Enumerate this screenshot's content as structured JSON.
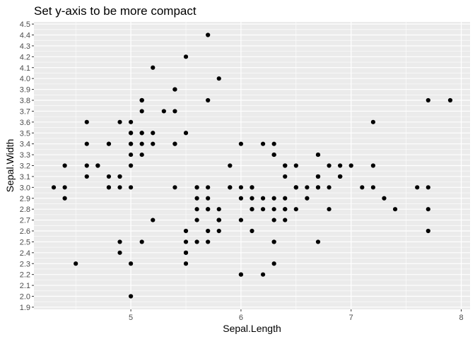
{
  "chart_data": {
    "type": "scatter",
    "title": "Set y-axis to be more compact",
    "xlabel": "Sepal.Length",
    "ylabel": "Sepal.Width",
    "xlim": [
      4.12,
      8.08
    ],
    "ylim": [
      1.88,
      4.52
    ],
    "x_ticks": [
      5,
      6,
      7,
      8
    ],
    "y_ticks": [
      1.9,
      2.0,
      2.1,
      2.2,
      2.3,
      2.4,
      2.5,
      2.6,
      2.7,
      2.8,
      2.9,
      3.0,
      3.1,
      3.2,
      3.3,
      3.4,
      3.5,
      3.6,
      3.7,
      3.8,
      3.9,
      4.0,
      4.1,
      4.2,
      4.3,
      4.4,
      4.5
    ],
    "grid": true,
    "panel_color": "#ebebeb",
    "grid_color": "#ffffff",
    "point_color": "#000000",
    "points": [
      [
        5.1,
        3.5
      ],
      [
        4.9,
        3.0
      ],
      [
        4.7,
        3.2
      ],
      [
        4.6,
        3.1
      ],
      [
        5.0,
        3.6
      ],
      [
        5.4,
        3.9
      ],
      [
        4.6,
        3.4
      ],
      [
        5.0,
        3.4
      ],
      [
        4.4,
        2.9
      ],
      [
        4.9,
        3.1
      ],
      [
        5.4,
        3.7
      ],
      [
        4.8,
        3.4
      ],
      [
        4.8,
        3.0
      ],
      [
        4.3,
        3.0
      ],
      [
        5.8,
        4.0
      ],
      [
        5.7,
        4.4
      ],
      [
        5.4,
        3.9
      ],
      [
        5.1,
        3.5
      ],
      [
        5.7,
        3.8
      ],
      [
        5.1,
        3.8
      ],
      [
        5.4,
        3.4
      ],
      [
        5.1,
        3.7
      ],
      [
        4.6,
        3.6
      ],
      [
        5.1,
        3.3
      ],
      [
        4.8,
        3.4
      ],
      [
        5.0,
        3.0
      ],
      [
        5.0,
        3.4
      ],
      [
        5.2,
        3.5
      ],
      [
        5.2,
        3.4
      ],
      [
        4.7,
        3.2
      ],
      [
        4.8,
        3.1
      ],
      [
        5.4,
        3.4
      ],
      [
        5.2,
        4.1
      ],
      [
        5.5,
        4.2
      ],
      [
        4.9,
        3.1
      ],
      [
        5.0,
        3.2
      ],
      [
        5.5,
        3.5
      ],
      [
        4.9,
        3.6
      ],
      [
        4.4,
        3.0
      ],
      [
        5.1,
        3.4
      ],
      [
        5.0,
        3.5
      ],
      [
        4.5,
        2.3
      ],
      [
        4.4,
        3.2
      ],
      [
        5.0,
        3.5
      ],
      [
        5.1,
        3.8
      ],
      [
        4.8,
        3.0
      ],
      [
        5.1,
        3.8
      ],
      [
        4.6,
        3.2
      ],
      [
        5.3,
        3.7
      ],
      [
        5.0,
        3.3
      ],
      [
        7.0,
        3.2
      ],
      [
        6.4,
        3.2
      ],
      [
        6.9,
        3.1
      ],
      [
        5.5,
        2.3
      ],
      [
        6.5,
        2.8
      ],
      [
        5.7,
        2.8
      ],
      [
        6.3,
        3.3
      ],
      [
        4.9,
        2.4
      ],
      [
        6.6,
        2.9
      ],
      [
        5.2,
        2.7
      ],
      [
        5.0,
        2.0
      ],
      [
        5.9,
        3.0
      ],
      [
        6.0,
        2.2
      ],
      [
        6.1,
        2.9
      ],
      [
        5.6,
        2.9
      ],
      [
        6.7,
        3.1
      ],
      [
        5.6,
        3.0
      ],
      [
        5.8,
        2.7
      ],
      [
        6.2,
        2.2
      ],
      [
        5.6,
        2.5
      ],
      [
        5.9,
        3.2
      ],
      [
        6.1,
        2.8
      ],
      [
        6.3,
        2.5
      ],
      [
        6.1,
        2.8
      ],
      [
        6.4,
        2.9
      ],
      [
        6.6,
        3.0
      ],
      [
        6.8,
        2.8
      ],
      [
        6.7,
        3.0
      ],
      [
        6.0,
        2.9
      ],
      [
        5.7,
        2.6
      ],
      [
        5.5,
        2.4
      ],
      [
        5.5,
        2.4
      ],
      [
        5.8,
        2.7
      ],
      [
        6.0,
        2.7
      ],
      [
        5.4,
        3.0
      ],
      [
        6.0,
        3.4
      ],
      [
        6.7,
        3.1
      ],
      [
        6.3,
        2.3
      ],
      [
        5.6,
        3.0
      ],
      [
        5.5,
        2.5
      ],
      [
        5.5,
        2.6
      ],
      [
        6.1,
        3.0
      ],
      [
        5.8,
        2.6
      ],
      [
        5.0,
        2.3
      ],
      [
        5.6,
        2.7
      ],
      [
        5.7,
        3.0
      ],
      [
        5.7,
        2.9
      ],
      [
        6.2,
        2.9
      ],
      [
        5.1,
        2.5
      ],
      [
        5.7,
        2.8
      ],
      [
        6.3,
        3.3
      ],
      [
        5.8,
        2.7
      ],
      [
        7.1,
        3.0
      ],
      [
        6.3,
        2.9
      ],
      [
        6.5,
        3.0
      ],
      [
        7.6,
        3.0
      ],
      [
        4.9,
        2.5
      ],
      [
        7.3,
        2.9
      ],
      [
        6.7,
        2.5
      ],
      [
        7.2,
        3.6
      ],
      [
        6.5,
        3.2
      ],
      [
        6.4,
        2.7
      ],
      [
        6.8,
        3.0
      ],
      [
        5.7,
        2.5
      ],
      [
        5.8,
        2.8
      ],
      [
        6.4,
        3.2
      ],
      [
        6.5,
        3.0
      ],
      [
        7.7,
        3.8
      ],
      [
        7.7,
        2.6
      ],
      [
        6.0,
        2.2
      ],
      [
        6.9,
        3.2
      ],
      [
        5.6,
        2.8
      ],
      [
        7.7,
        2.8
      ],
      [
        6.3,
        2.7
      ],
      [
        6.7,
        3.3
      ],
      [
        7.2,
        3.2
      ],
      [
        6.2,
        2.8
      ],
      [
        6.1,
        3.0
      ],
      [
        6.4,
        2.8
      ],
      [
        7.2,
        3.0
      ],
      [
        7.4,
        2.8
      ],
      [
        7.9,
        3.8
      ],
      [
        6.4,
        2.8
      ],
      [
        6.3,
        2.8
      ],
      [
        6.1,
        2.6
      ],
      [
        7.7,
        3.0
      ],
      [
        6.3,
        3.4
      ],
      [
        6.4,
        3.1
      ],
      [
        6.0,
        3.0
      ],
      [
        6.9,
        3.1
      ],
      [
        6.7,
        3.1
      ],
      [
        6.9,
        3.1
      ],
      [
        5.8,
        2.7
      ],
      [
        6.8,
        3.2
      ],
      [
        6.7,
        3.3
      ],
      [
        6.7,
        3.0
      ],
      [
        6.3,
        2.5
      ],
      [
        6.5,
        3.0
      ],
      [
        6.2,
        3.4
      ],
      [
        5.9,
        3.0
      ]
    ]
  }
}
